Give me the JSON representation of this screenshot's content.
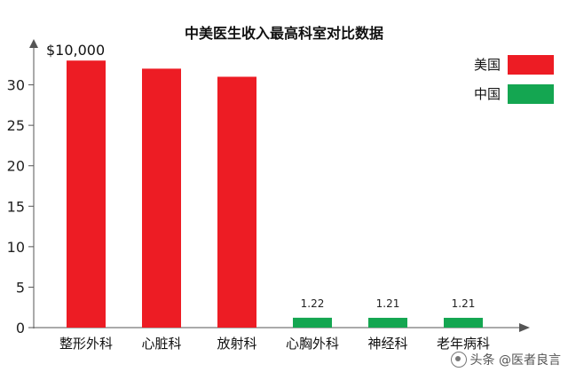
{
  "chart_data": {
    "type": "bar",
    "title": "中美医生收入最高科室对比数据",
    "unit_label": "$10,000",
    "categories": [
      "整形外科",
      "心脏科",
      "放射科",
      "心胸外科",
      "神经科",
      "老年病科"
    ],
    "series": [
      {
        "name": "美国",
        "color": "#ed1c24",
        "values": [
          33,
          32,
          31,
          null,
          null,
          null
        ]
      },
      {
        "name": "中国",
        "color": "#14a651",
        "values": [
          null,
          null,
          null,
          1.22,
          1.21,
          1.21
        ]
      }
    ],
    "data_labels": [
      "",
      "",
      "",
      "1.22",
      "1.21",
      "1.21"
    ],
    "yticks": [
      "0",
      "5",
      "10",
      "15",
      "20",
      "25",
      "30"
    ],
    "ylim": [
      0,
      35
    ],
    "legend_position": "top-right",
    "grid": false
  },
  "watermark": {
    "text": "头条 @医者良言",
    "logo_icon": "toutiao-logo-icon"
  }
}
